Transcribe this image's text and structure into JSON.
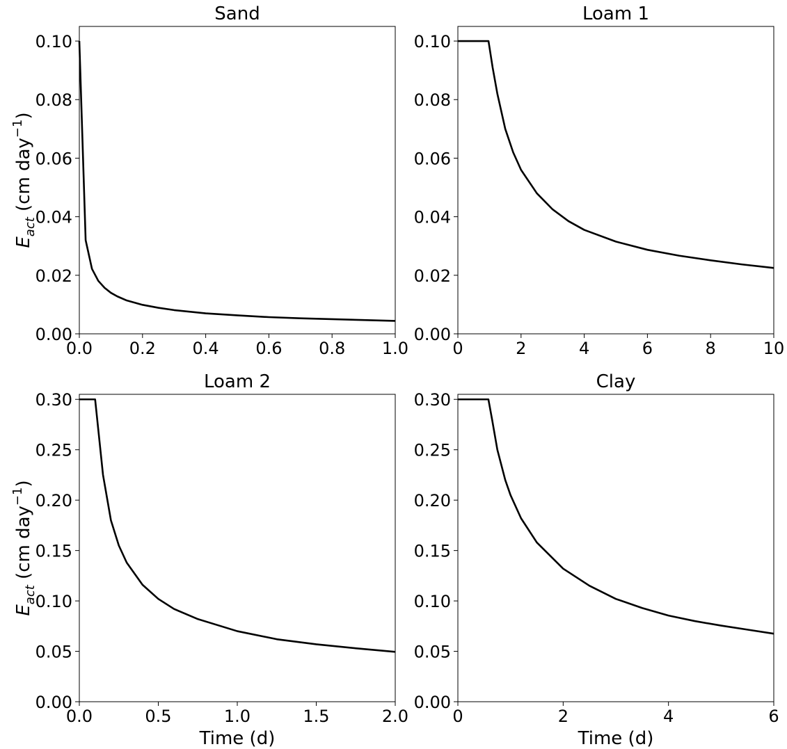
{
  "figure": {
    "ylabel_main": "E",
    "ylabel_sub": "act",
    "ylabel_unit_pre": " (cm day",
    "ylabel_unit_sup": "−1",
    "ylabel_unit_post": ")",
    "xlabel": "Time (d)"
  },
  "chart_data": [
    {
      "type": "line",
      "title": "Sand",
      "xlabel": "",
      "ylabel": "Eact (cm day−1)",
      "xlim": [
        0,
        1.0
      ],
      "ylim": [
        0,
        0.105
      ],
      "xticks": [
        "0.0",
        "0.2",
        "0.4",
        "0.6",
        "0.8",
        "1.0"
      ],
      "yticks": [
        "0.00",
        "0.02",
        "0.04",
        "0.06",
        "0.08",
        "0.10"
      ],
      "grid": false,
      "color": "#000000",
      "x": [
        0,
        0.02,
        0.04,
        0.06,
        0.08,
        0.1,
        0.12,
        0.15,
        0.2,
        0.25,
        0.3,
        0.4,
        0.5,
        0.6,
        0.7,
        0.8,
        0.9,
        1.0
      ],
      "y": [
        0.1,
        0.032,
        0.0222,
        0.0181,
        0.0157,
        0.014,
        0.0128,
        0.0114,
        0.0099,
        0.0089,
        0.0081,
        0.007,
        0.0063,
        0.0057,
        0.0053,
        0.005,
        0.0047,
        0.0044
      ]
    },
    {
      "type": "line",
      "title": "Loam 1",
      "xlabel": "",
      "ylabel": "",
      "xlim": [
        0,
        10
      ],
      "ylim": [
        0,
        0.105
      ],
      "xticks": [
        "0",
        "2",
        "4",
        "6",
        "8",
        "10"
      ],
      "yticks": [
        "0.00",
        "0.02",
        "0.04",
        "0.06",
        "0.08",
        "0.10"
      ],
      "grid": false,
      "color": "#000000",
      "x": [
        0,
        0.97,
        1.1,
        1.25,
        1.5,
        1.75,
        2,
        2.5,
        3,
        3.5,
        4,
        5,
        6,
        7,
        8,
        9,
        10
      ],
      "y": [
        0.1,
        0.1,
        0.091,
        0.082,
        0.07,
        0.062,
        0.056,
        0.048,
        0.0425,
        0.0385,
        0.0355,
        0.0315,
        0.0287,
        0.0267,
        0.0251,
        0.0237,
        0.0225
      ]
    },
    {
      "type": "line",
      "title": "Loam 2",
      "xlabel": "Time (d)",
      "ylabel": "Eact (cm day−1)",
      "xlim": [
        0,
        2.0
      ],
      "ylim": [
        0,
        0.305
      ],
      "xticks": [
        "0.0",
        "0.5",
        "1.0",
        "1.5",
        "2.0"
      ],
      "yticks": [
        "0.00",
        "0.05",
        "0.10",
        "0.15",
        "0.20",
        "0.25",
        "0.30"
      ],
      "grid": false,
      "color": "#000000",
      "x": [
        0,
        0.1,
        0.12,
        0.15,
        0.2,
        0.25,
        0.3,
        0.4,
        0.5,
        0.6,
        0.75,
        1.0,
        1.25,
        1.5,
        1.75,
        2.0
      ],
      "y": [
        0.3,
        0.3,
        0.27,
        0.225,
        0.18,
        0.155,
        0.138,
        0.116,
        0.102,
        0.092,
        0.082,
        0.07,
        0.062,
        0.057,
        0.053,
        0.0495
      ]
    },
    {
      "type": "line",
      "title": "Clay",
      "xlabel": "Time (d)",
      "ylabel": "",
      "xlim": [
        0,
        6
      ],
      "ylim": [
        0,
        0.305
      ],
      "xticks": [
        "0",
        "2",
        "4",
        "6"
      ],
      "yticks": [
        "0.00",
        "0.05",
        "0.10",
        "0.15",
        "0.20",
        "0.25",
        "0.30"
      ],
      "grid": false,
      "color": "#000000",
      "x": [
        0,
        0.58,
        0.65,
        0.75,
        0.9,
        1.0,
        1.2,
        1.5,
        2,
        2.5,
        3,
        3.5,
        4,
        4.5,
        5,
        5.5,
        6
      ],
      "y": [
        0.3,
        0.3,
        0.28,
        0.25,
        0.22,
        0.205,
        0.182,
        0.158,
        0.132,
        0.115,
        0.102,
        0.093,
        0.0855,
        0.08,
        0.0755,
        0.0715,
        0.0675
      ]
    }
  ]
}
